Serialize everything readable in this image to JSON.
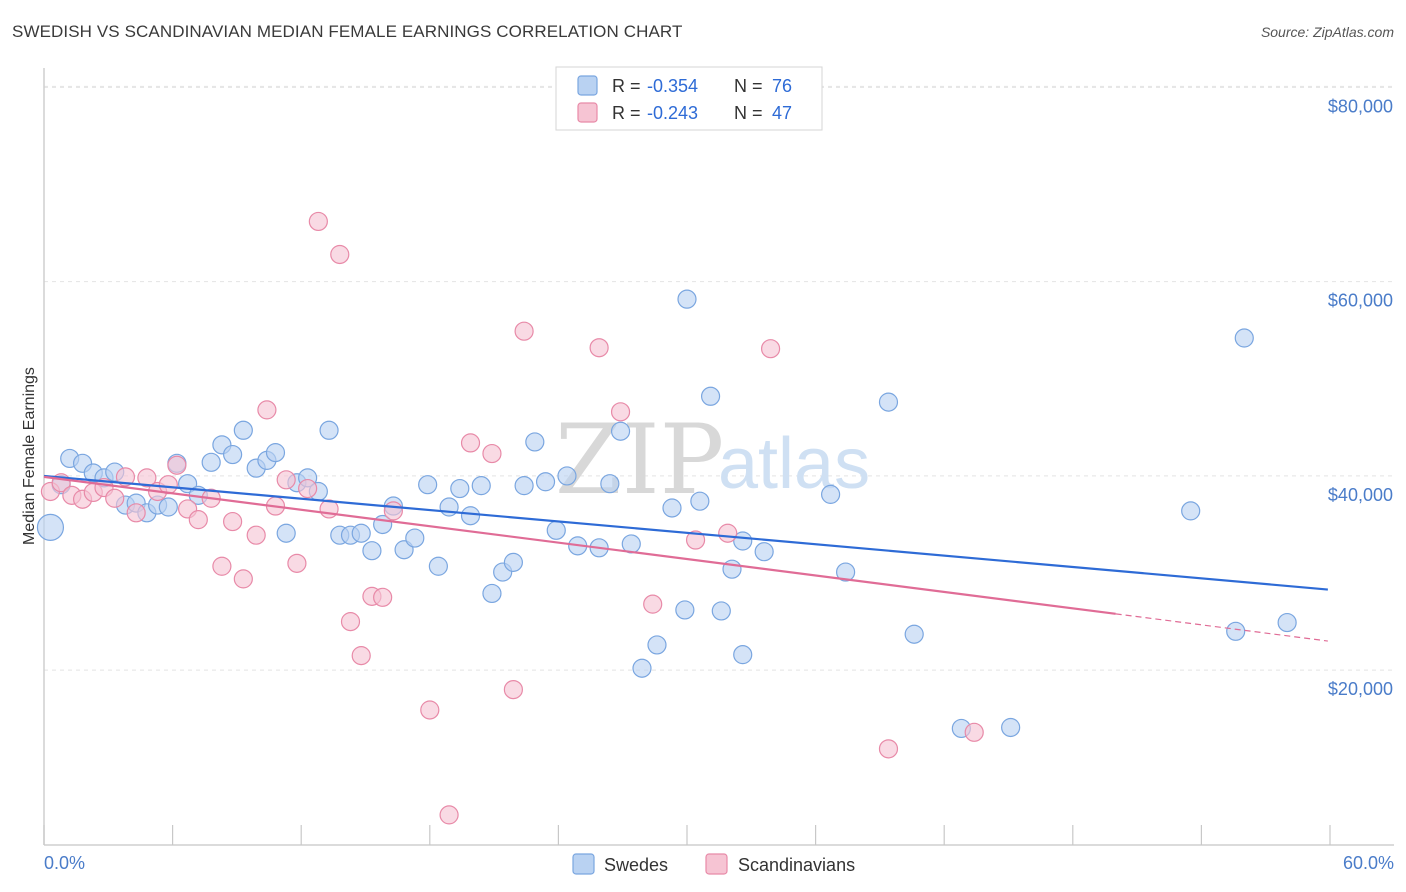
{
  "header": {
    "title": "SWEDISH VS SCANDINAVIAN MEDIAN FEMALE EARNINGS CORRELATION CHART",
    "source": "Source: ZipAtlas.com"
  },
  "watermark": {
    "zip": "ZIP",
    "atlas": "atlas"
  },
  "legend_top": {
    "rows": [
      {
        "r_label": "R =",
        "r_value": "-0.354",
        "n_label": "N =",
        "n_value": "76",
        "color": "#7aa6e0",
        "fill": "#b9d2f2"
      },
      {
        "r_label": "R =",
        "r_value": "-0.243",
        "n_label": "N =",
        "n_value": "47",
        "color": "#e88aa8",
        "fill": "#f6c4d3"
      }
    ]
  },
  "legend_bottom": [
    {
      "label": "Swedes",
      "color": "#7aa6e0",
      "fill": "#b9d2f2"
    },
    {
      "label": "Scandinavians",
      "color": "#e88aa8",
      "fill": "#f6c4d3"
    }
  ],
  "chart_data": {
    "type": "scatter",
    "title": "SWEDISH VS SCANDINAVIAN MEDIAN FEMALE EARNINGS CORRELATION CHART",
    "xlabel": "",
    "ylabel": "Median Female Earnings",
    "xlim": [
      0,
      60
    ],
    "ylim": [
      2000,
      82000
    ],
    "x_tick_labels": [
      "0.0%",
      "60.0%"
    ],
    "y_ticks": [
      {
        "value": 20000,
        "label": "$20,000"
      },
      {
        "value": 40000,
        "label": "$40,000"
      },
      {
        "value": 60000,
        "label": "$60,000"
      },
      {
        "value": 80000,
        "label": "$80,000"
      }
    ],
    "grid": true,
    "legend_placement": "top-center",
    "series": [
      {
        "name": "Swedes",
        "color": "#7aa6e0",
        "fill": "#b9d2f2",
        "trend_color": "#2e6bd6",
        "trend": {
          "x0": 0,
          "y0": 40000,
          "x1": 59.9,
          "y1": 28300
        },
        "points": [
          [
            0.3,
            34700
          ],
          [
            0.8,
            39100
          ],
          [
            1.2,
            41800
          ],
          [
            1.8,
            41300
          ],
          [
            2.3,
            40300
          ],
          [
            2.8,
            39800
          ],
          [
            3.3,
            40400
          ],
          [
            3.8,
            37000
          ],
          [
            4.3,
            37200
          ],
          [
            4.8,
            36200
          ],
          [
            5.3,
            37000
          ],
          [
            5.8,
            36800
          ],
          [
            6.2,
            41300
          ],
          [
            6.7,
            39200
          ],
          [
            7.2,
            38000
          ],
          [
            7.8,
            41400
          ],
          [
            8.3,
            43200
          ],
          [
            8.8,
            42200
          ],
          [
            9.3,
            44700
          ],
          [
            9.9,
            40800
          ],
          [
            10.4,
            41600
          ],
          [
            10.8,
            42400
          ],
          [
            11.3,
            34100
          ],
          [
            11.8,
            39300
          ],
          [
            12.3,
            39800
          ],
          [
            12.8,
            38400
          ],
          [
            13.3,
            44700
          ],
          [
            13.8,
            33900
          ],
          [
            14.3,
            33900
          ],
          [
            14.8,
            34100
          ],
          [
            15.3,
            32300
          ],
          [
            15.8,
            35000
          ],
          [
            16.3,
            36900
          ],
          [
            16.8,
            32400
          ],
          [
            17.3,
            33600
          ],
          [
            17.9,
            39100
          ],
          [
            18.4,
            30700
          ],
          [
            18.9,
            36800
          ],
          [
            19.4,
            38700
          ],
          [
            19.9,
            35900
          ],
          [
            20.4,
            39000
          ],
          [
            20.9,
            27900
          ],
          [
            21.4,
            30100
          ],
          [
            21.9,
            31100
          ],
          [
            22.4,
            39000
          ],
          [
            22.9,
            43500
          ],
          [
            23.4,
            39400
          ],
          [
            23.9,
            34400
          ],
          [
            24.4,
            40000
          ],
          [
            24.9,
            32800
          ],
          [
            25.9,
            32600
          ],
          [
            26.4,
            39200
          ],
          [
            26.9,
            44600
          ],
          [
            27.4,
            33000
          ],
          [
            27.9,
            20200
          ],
          [
            28.6,
            22600
          ],
          [
            29.3,
            36700
          ],
          [
            29.9,
            26200
          ],
          [
            30.0,
            58200
          ],
          [
            30.6,
            37400
          ],
          [
            31.1,
            48200
          ],
          [
            31.6,
            26100
          ],
          [
            32.1,
            30400
          ],
          [
            32.6,
            33300
          ],
          [
            32.6,
            21600
          ],
          [
            33.6,
            32200
          ],
          [
            36.7,
            38100
          ],
          [
            37.4,
            30100
          ],
          [
            39.4,
            47600
          ],
          [
            40.6,
            23700
          ],
          [
            42.8,
            14000
          ],
          [
            45.1,
            14100
          ],
          [
            53.5,
            36400
          ],
          [
            55.6,
            24000
          ],
          [
            56.0,
            54200
          ],
          [
            58.0,
            24900
          ]
        ]
      },
      {
        "name": "Scandinavians",
        "color": "#e88aa8",
        "fill": "#f6c4d3",
        "trend_color": "#e06c96",
        "trend": {
          "x0": 0,
          "y0": 39900,
          "x1": 50.0,
          "y1": 25800
        },
        "trend_dash": {
          "x0": 50.0,
          "y0": 25800,
          "x1": 59.9,
          "y1": 23000
        },
        "points": [
          [
            0.3,
            38400
          ],
          [
            0.8,
            39300
          ],
          [
            1.3,
            38000
          ],
          [
            1.8,
            37600
          ],
          [
            2.3,
            38300
          ],
          [
            2.8,
            38800
          ],
          [
            3.3,
            37700
          ],
          [
            3.8,
            39900
          ],
          [
            4.3,
            36200
          ],
          [
            4.8,
            39800
          ],
          [
            5.3,
            38400
          ],
          [
            5.8,
            39100
          ],
          [
            6.2,
            41100
          ],
          [
            6.7,
            36600
          ],
          [
            7.2,
            35500
          ],
          [
            7.8,
            37700
          ],
          [
            8.3,
            30700
          ],
          [
            8.8,
            35300
          ],
          [
            9.3,
            29400
          ],
          [
            9.9,
            33900
          ],
          [
            10.4,
            46800
          ],
          [
            10.8,
            36900
          ],
          [
            11.3,
            39600
          ],
          [
            11.8,
            31000
          ],
          [
            12.3,
            38700
          ],
          [
            12.8,
            66200
          ],
          [
            13.3,
            36600
          ],
          [
            13.8,
            62800
          ],
          [
            14.3,
            25000
          ],
          [
            14.8,
            21500
          ],
          [
            15.3,
            27600
          ],
          [
            15.8,
            27500
          ],
          [
            16.3,
            36400
          ],
          [
            18.0,
            15900
          ],
          [
            18.9,
            5100
          ],
          [
            19.9,
            43400
          ],
          [
            20.9,
            42300
          ],
          [
            21.9,
            18000
          ],
          [
            22.4,
            54900
          ],
          [
            25.9,
            53200
          ],
          [
            26.9,
            46600
          ],
          [
            28.4,
            26800
          ],
          [
            30.4,
            33400
          ],
          [
            31.9,
            34100
          ],
          [
            33.9,
            53100
          ],
          [
            39.4,
            11900
          ],
          [
            43.4,
            13600
          ]
        ]
      }
    ]
  }
}
